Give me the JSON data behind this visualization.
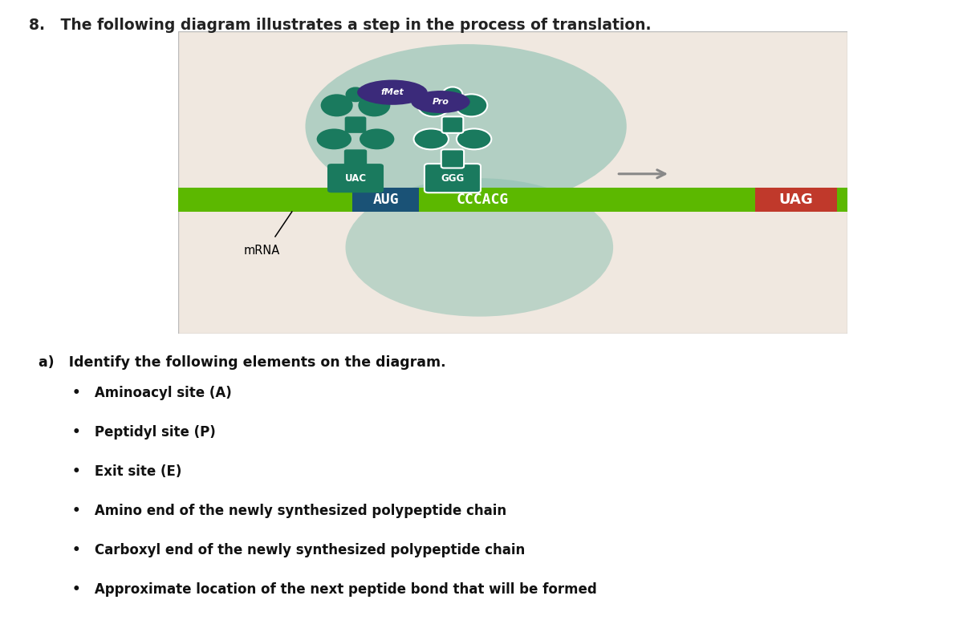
{
  "title": "8.   The following diagram illustrates a step in the process of translation.",
  "bg_color": "#ffffff",
  "diagram_bg": "#f0e8e0",
  "ribosome_blob_color": "#8abfb0",
  "mrna_bar_color": "#5cb800",
  "mrna_text_left": "AUG",
  "mrna_text_right": "CCCACG",
  "aug_bg": "#1a5276",
  "uag_bg": "#c0392b",
  "uag_text": "UAG",
  "codon_p": "UAC",
  "codon_a": "GGG",
  "trna_color": "#1a7a5e",
  "fmet_color": "#3b2a7a",
  "pro_color": "#3b2a7a",
  "fmet_label": "fMet",
  "pro_label": "Pro",
  "mrna_label": "mRNA",
  "arrow_color": "#888888",
  "question_a": "a)   Identify the following elements on the diagram.",
  "bullets": [
    "Aminoacyl site (A)",
    "Peptidyl site (P)",
    "Exit site (E)",
    "Amino end of the newly synthesized polypeptide chain",
    "Carboxyl end of the newly synthesized polypeptide chain",
    "Approximate location of the next peptide bond that will be formed"
  ]
}
